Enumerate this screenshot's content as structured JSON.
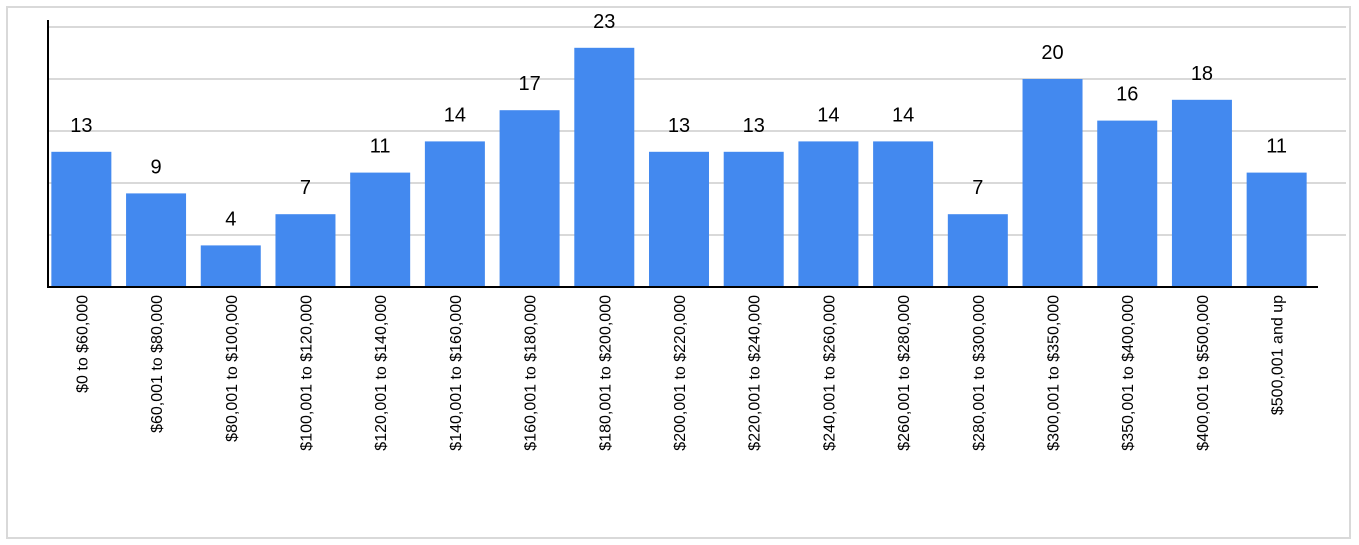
{
  "chart_data": {
    "type": "bar",
    "categories": [
      "$0 to $60,000",
      "$60,001 to $80,000",
      "$80,001 to $100,000",
      "$100,001 to $120,000",
      "$120,001 to $140,000",
      "$140,001 to $160,000",
      "$160,001 to $180,000",
      "$180,001 to $200,000",
      "$200,001 to $220,000",
      "$220,001 to $240,000",
      "$240,001 to $260,000",
      "$260,001 to $280,000",
      "$280,001 to $300,000",
      "$300,001 to $350,000",
      "$350,001 to $400,000",
      "$400,001 to $500,000",
      "$500,001 and up"
    ],
    "values": [
      13,
      9,
      4,
      7,
      11,
      14,
      17,
      23,
      13,
      13,
      14,
      14,
      7,
      20,
      16,
      18,
      11
    ],
    "ylim": [
      0,
      25
    ],
    "gridlines": [
      5,
      10,
      15,
      20,
      25
    ],
    "grid": true,
    "legend": "none",
    "tick_label_rotation": "vertical",
    "colors": {
      "bar": "#4389ef",
      "grid": "#d9d9d9",
      "axis": "#000000",
      "frame": "#d9d9d9",
      "text": "#000000"
    }
  }
}
